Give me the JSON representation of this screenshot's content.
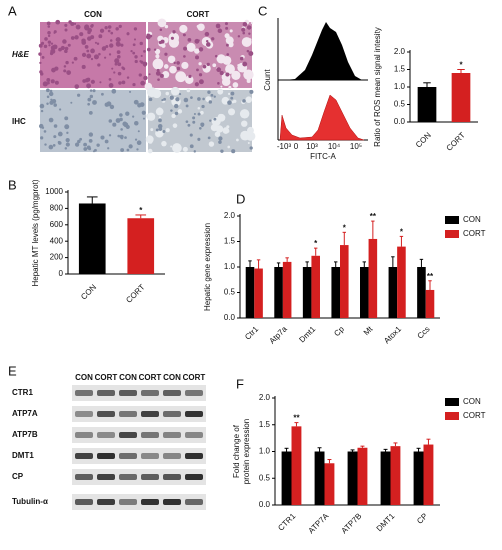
{
  "figure": {
    "panel_labels": [
      "A",
      "B",
      "C",
      "D",
      "E",
      "F"
    ],
    "histology": {
      "columns": [
        "CON",
        "CORT"
      ],
      "rows": [
        "H&E",
        "IHC"
      ]
    },
    "flow": {
      "y_label": "Count",
      "x_label": "FITC-A",
      "x_ticks": [
        "-10³",
        "0",
        "10³",
        "10⁴",
        "10⁵"
      ]
    },
    "blot": {
      "lanes": [
        "CON",
        "CORT",
        "CON",
        "CORT",
        "CON",
        "CORT"
      ],
      "rows": [
        "CTR1",
        "ATP7A",
        "ATP7B",
        "DMT1",
        "CP",
        "Tubulin-α"
      ]
    }
  },
  "chart_data": [
    {
      "type": "bar",
      "ylabel": "Hepatic MT levels (pg/mgprot)",
      "categories": [
        "CON",
        "CORT"
      ],
      "values": [
        860,
        680
      ],
      "errors": [
        80,
        40
      ],
      "colors": [
        "#000000",
        "#d42020"
      ],
      "annotations": [
        null,
        "*"
      ],
      "ylim": [
        0,
        1000
      ],
      "yticks": [
        0,
        200,
        400,
        600,
        800,
        1000
      ]
    },
    {
      "type": "bar",
      "ylabel": "Ratio of ROS mean signal intesity",
      "categories": [
        "CON",
        "CORT"
      ],
      "values": [
        1.0,
        1.4
      ],
      "errors": [
        0.12,
        0.1
      ],
      "colors": [
        "#000000",
        "#d42020"
      ],
      "annotations": [
        null,
        "*"
      ],
      "ylim": [
        0,
        2.0
      ],
      "yticks": [
        {
          "value": 0,
          "label": "0.0"
        },
        {
          "value": 0.5,
          "label": "0.5"
        },
        {
          "value": 1,
          "label": "1.0"
        },
        {
          "value": 1.5,
          "label": "1.5"
        },
        {
          "value": 2,
          "label": "2.0"
        }
      ]
    },
    {
      "type": "grouped_bar",
      "ylabel": "Hepatic gene expression",
      "legend": "upper right",
      "categories": [
        "Ctr1",
        "Atp7a",
        "Dmt1",
        "Cp",
        "Mt",
        "Atox1",
        "Ccs"
      ],
      "series": [
        {
          "name": "CON",
          "color": "#000000",
          "values": [
            1.0,
            1.0,
            1.0,
            1.0,
            1.0,
            1.0,
            1.0
          ],
          "errors": [
            0.12,
            0.08,
            0.1,
            0.1,
            0.1,
            0.2,
            0.15
          ],
          "annotations": [
            null,
            null,
            null,
            null,
            null,
            null,
            null
          ]
        },
        {
          "name": "CORT",
          "color": "#d42020",
          "values": [
            0.97,
            1.1,
            1.22,
            1.43,
            1.55,
            1.4,
            0.55
          ],
          "errors": [
            0.17,
            0.08,
            0.15,
            0.25,
            0.35,
            0.2,
            0.18
          ],
          "annotations": [
            null,
            null,
            "*",
            "*",
            "**",
            "*",
            "**"
          ]
        }
      ],
      "ylim": [
        0,
        2.0
      ],
      "yticks": [
        {
          "value": 0,
          "label": "0.0"
        },
        {
          "value": 0.5,
          "label": "0.5"
        },
        {
          "value": 1,
          "label": "1.0"
        },
        {
          "value": 1.5,
          "label": "1.5"
        },
        {
          "value": 2,
          "label": "2.0"
        }
      ]
    },
    {
      "type": "grouped_bar",
      "ylabel": [
        "Fold change of",
        "protein expression"
      ],
      "legend": "upper right",
      "categories": [
        "CTR1",
        "ATP7A",
        "ATP7B",
        "DMT1",
        "CP"
      ],
      "series": [
        {
          "name": "CON",
          "color": "#000000",
          "values": [
            1.0,
            1.0,
            1.0,
            1.0,
            1.0
          ],
          "errors": [
            0.06,
            0.07,
            0.03,
            0.04,
            0.06
          ],
          "annotations": [
            null,
            null,
            null,
            null,
            null
          ]
        },
        {
          "name": "CORT",
          "color": "#d42020",
          "values": [
            1.47,
            0.78,
            1.07,
            1.1,
            1.13
          ],
          "errors": [
            0.07,
            0.07,
            0.03,
            0.06,
            0.1
          ],
          "annotations": [
            "**",
            null,
            null,
            null,
            null
          ]
        }
      ],
      "ylim": [
        0,
        2.0
      ],
      "yticks": [
        {
          "value": 0,
          "label": "0.0"
        },
        {
          "value": 0.5,
          "label": "0.5"
        },
        {
          "value": 1,
          "label": "1.0"
        },
        {
          "value": 1.5,
          "label": "1.5"
        },
        {
          "value": 2,
          "label": "2.0"
        }
      ]
    }
  ]
}
